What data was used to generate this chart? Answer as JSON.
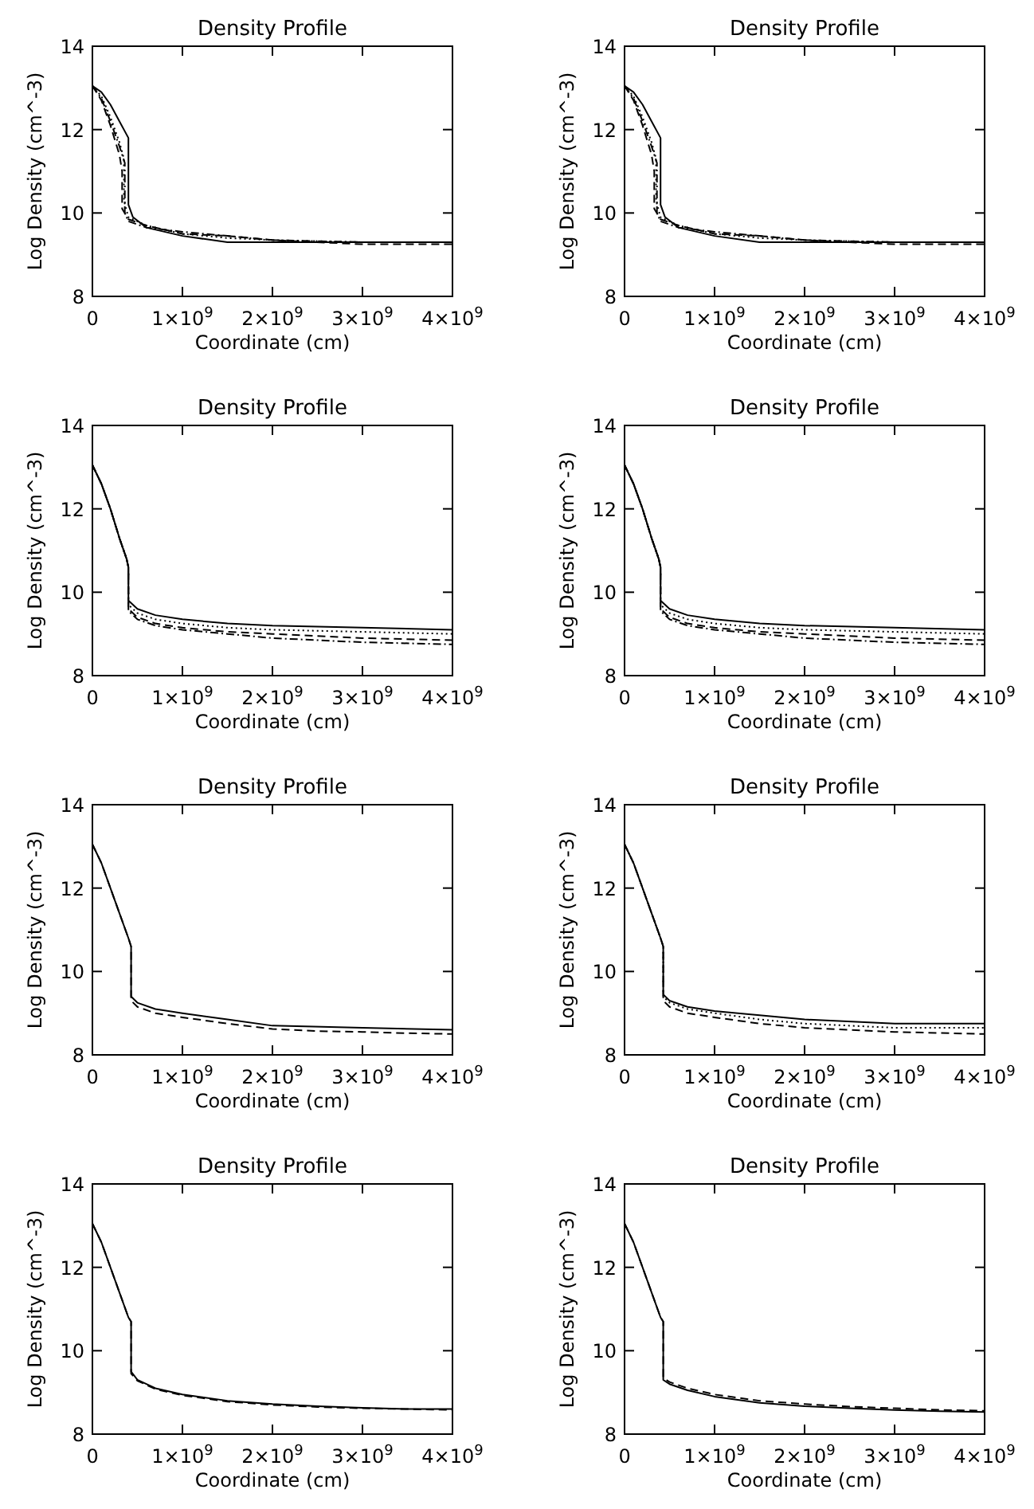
{
  "chart_data": [
    {
      "type": "line",
      "title": "Density Profile",
      "xlabel": "Coordinate (cm)",
      "ylabel": "Log Density (cm^-3)",
      "xlim": [
        0,
        4000000000.0
      ],
      "ylim": [
        8,
        14
      ],
      "xticks": [
        {
          "value": 0,
          "label": "0"
        },
        {
          "value": 1000000000.0,
          "label": "1×10$^{9}$"
        },
        {
          "value": 2000000000.0,
          "label": "2×10$^{9}$"
        },
        {
          "value": 3000000000.0,
          "label": "3×10$^{9}$"
        },
        {
          "value": 4000000000.0,
          "label": "4×10$^{9}$"
        }
      ],
      "yticks": [
        8,
        10,
        12,
        14
      ],
      "grid": false,
      "series": [
        {
          "color": "#000000",
          "line_style": "solid",
          "x": [
            0,
            100000000.0,
            200000000.0,
            300000000.0,
            400000000.0,
            400000000.0,
            450000000.0,
            600000000.0,
            800000000.0,
            1000000000.0,
            1500000000.0,
            2000000000.0,
            3000000000.0,
            4000000000.0
          ],
          "values": [
            13.05,
            12.9,
            12.6,
            12.2,
            11.8,
            10.2,
            9.9,
            9.65,
            9.55,
            9.45,
            9.3,
            9.3,
            9.3,
            9.3
          ]
        },
        {
          "color": "#000000",
          "line_style": "dotted",
          "x": [
            0,
            100000000.0,
            200000000.0,
            300000000.0,
            350000000.0,
            350000000.0,
            400000000.0,
            600000000.0,
            800000000.0,
            1000000000.0,
            1500000000.0,
            2000000000.0,
            3000000000.0,
            4000000000.0
          ],
          "values": [
            13.05,
            12.8,
            12.3,
            11.7,
            11.3,
            10.3,
            9.9,
            9.7,
            9.6,
            9.5,
            9.4,
            9.35,
            9.3,
            9.3
          ]
        },
        {
          "color": "#000000",
          "line_style": "dashed",
          "x": [
            0,
            100000000.0,
            200000000.0,
            300000000.0,
            330000000.0,
            330000000.0,
            400000000.0,
            600000000.0,
            800000000.0,
            1000000000.0,
            1500000000.0,
            2000000000.0,
            3000000000.0,
            4000000000.0
          ],
          "values": [
            13.05,
            12.7,
            12.1,
            11.4,
            11.0,
            10.1,
            9.85,
            9.7,
            9.6,
            9.5,
            9.45,
            9.35,
            9.25,
            9.25
          ]
        },
        {
          "color": "#000000",
          "line_style": "dashdot",
          "x": [
            0,
            100000000.0,
            200000000.0,
            300000000.0,
            360000000.0,
            360000000.0,
            400000000.0,
            600000000.0,
            800000000.0,
            1000000000.0,
            1500000000.0,
            2000000000.0,
            3000000000.0,
            4000000000.0
          ],
          "values": [
            13.05,
            12.75,
            12.2,
            11.6,
            11.2,
            10.0,
            9.8,
            9.65,
            9.6,
            9.55,
            9.45,
            9.35,
            9.3,
            9.3
          ]
        }
      ]
    },
    {
      "type": "line",
      "title": "Density Profile",
      "xlabel": "Coordinate (cm)",
      "ylabel": "Log Density (cm^-3)",
      "xlim": [
        0,
        4000000000.0
      ],
      "ylim": [
        8,
        14
      ],
      "xticks": [
        {
          "value": 0,
          "label": "0"
        },
        {
          "value": 1000000000.0,
          "label": "1×10$^{9}$"
        },
        {
          "value": 2000000000.0,
          "label": "2×10$^{9}$"
        },
        {
          "value": 3000000000.0,
          "label": "3×10$^{9}$"
        },
        {
          "value": 4000000000.0,
          "label": "4×10$^{9}$"
        }
      ],
      "yticks": [
        8,
        10,
        12,
        14
      ],
      "grid": false,
      "series": [
        {
          "color": "#000000",
          "line_style": "solid",
          "x": [
            0,
            100000000.0,
            200000000.0,
            300000000.0,
            400000000.0,
            400000000.0,
            450000000.0,
            600000000.0,
            800000000.0,
            1000000000.0,
            1500000000.0,
            2000000000.0,
            3000000000.0,
            4000000000.0
          ],
          "values": [
            13.05,
            12.9,
            12.6,
            12.2,
            11.8,
            10.2,
            9.9,
            9.65,
            9.55,
            9.45,
            9.3,
            9.3,
            9.3,
            9.3
          ]
        },
        {
          "color": "#000000",
          "line_style": "dotted",
          "x": [
            0,
            100000000.0,
            200000000.0,
            300000000.0,
            350000000.0,
            350000000.0,
            400000000.0,
            600000000.0,
            800000000.0,
            1000000000.0,
            1500000000.0,
            2000000000.0,
            3000000000.0,
            4000000000.0
          ],
          "values": [
            13.05,
            12.8,
            12.3,
            11.7,
            11.3,
            10.3,
            9.9,
            9.7,
            9.6,
            9.5,
            9.4,
            9.35,
            9.3,
            9.3
          ]
        },
        {
          "color": "#000000",
          "line_style": "dashed",
          "x": [
            0,
            100000000.0,
            200000000.0,
            300000000.0,
            330000000.0,
            330000000.0,
            400000000.0,
            600000000.0,
            800000000.0,
            1000000000.0,
            1500000000.0,
            2000000000.0,
            3000000000.0,
            4000000000.0
          ],
          "values": [
            13.05,
            12.7,
            12.1,
            11.4,
            11.0,
            10.1,
            9.85,
            9.7,
            9.6,
            9.5,
            9.45,
            9.35,
            9.25,
            9.25
          ]
        },
        {
          "color": "#000000",
          "line_style": "dashdot",
          "x": [
            0,
            100000000.0,
            200000000.0,
            300000000.0,
            360000000.0,
            360000000.0,
            400000000.0,
            600000000.0,
            800000000.0,
            1000000000.0,
            1500000000.0,
            2000000000.0,
            3000000000.0,
            4000000000.0
          ],
          "values": [
            13.05,
            12.75,
            12.2,
            11.6,
            11.2,
            10.0,
            9.8,
            9.65,
            9.6,
            9.55,
            9.45,
            9.35,
            9.3,
            9.3
          ]
        }
      ]
    },
    {
      "type": "line",
      "title": "Density Profile",
      "xlabel": "Coordinate (cm)",
      "ylabel": "Log Density (cm^-3)",
      "xlim": [
        0,
        4000000000.0
      ],
      "ylim": [
        8,
        14
      ],
      "xticks": [
        {
          "value": 0,
          "label": "0"
        },
        {
          "value": 1000000000.0,
          "label": "1×10$^{9}$"
        },
        {
          "value": 2000000000.0,
          "label": "2×10$^{9}$"
        },
        {
          "value": 3000000000.0,
          "label": "3×10$^{9}$"
        },
        {
          "value": 4000000000.0,
          "label": "4×10$^{9}$"
        }
      ],
      "yticks": [
        8,
        10,
        12,
        14
      ],
      "grid": false,
      "series": [
        {
          "color": "#000000",
          "line_style": "solid",
          "x": [
            0,
            100000000.0,
            200000000.0,
            300000000.0,
            380000000.0,
            400000000.0,
            400000000.0,
            500000000.0,
            700000000.0,
            1000000000.0,
            1500000000.0,
            2000000000.0,
            3000000000.0,
            4000000000.0
          ],
          "values": [
            13.05,
            12.6,
            12.0,
            11.3,
            10.8,
            10.6,
            9.8,
            9.6,
            9.45,
            9.35,
            9.25,
            9.2,
            9.15,
            9.1
          ]
        },
        {
          "color": "#000000",
          "line_style": "dotted",
          "x": [
            0,
            100000000.0,
            200000000.0,
            300000000.0,
            380000000.0,
            400000000.0,
            400000000.0,
            500000000.0,
            700000000.0,
            1000000000.0,
            1500000000.0,
            2000000000.0,
            3000000000.0,
            4000000000.0
          ],
          "values": [
            13.05,
            12.6,
            12.0,
            11.3,
            10.8,
            10.6,
            9.7,
            9.5,
            9.35,
            9.25,
            9.15,
            9.1,
            9.05,
            9.0
          ]
        },
        {
          "color": "#000000",
          "line_style": "dashed",
          "x": [
            0,
            100000000.0,
            200000000.0,
            300000000.0,
            380000000.0,
            400000000.0,
            400000000.0,
            500000000.0,
            700000000.0,
            1000000000.0,
            1500000000.0,
            2000000000.0,
            3000000000.0,
            4000000000.0
          ],
          "values": [
            13.05,
            12.6,
            12.0,
            11.3,
            10.8,
            10.6,
            9.6,
            9.4,
            9.25,
            9.15,
            9.05,
            9.0,
            8.9,
            8.85
          ]
        },
        {
          "color": "#000000",
          "line_style": "dashdot",
          "x": [
            0,
            100000000.0,
            200000000.0,
            300000000.0,
            380000000.0,
            400000000.0,
            400000000.0,
            500000000.0,
            700000000.0,
            1000000000.0,
            1500000000.0,
            2000000000.0,
            3000000000.0,
            4000000000.0
          ],
          "values": [
            13.05,
            12.6,
            12.0,
            11.3,
            10.8,
            10.6,
            9.55,
            9.35,
            9.2,
            9.1,
            9.0,
            8.9,
            8.8,
            8.75
          ]
        }
      ]
    },
    {
      "type": "line",
      "title": "Density Profile",
      "xlabel": "Coordinate (cm)",
      "ylabel": "Log Density (cm^-3)",
      "xlim": [
        0,
        4000000000.0
      ],
      "ylim": [
        8,
        14
      ],
      "xticks": [
        {
          "value": 0,
          "label": "0"
        },
        {
          "value": 1000000000.0,
          "label": "1×10$^{9}$"
        },
        {
          "value": 2000000000.0,
          "label": "2×10$^{9}$"
        },
        {
          "value": 3000000000.0,
          "label": "3×10$^{9}$"
        },
        {
          "value": 4000000000.0,
          "label": "4×10$^{9}$"
        }
      ],
      "yticks": [
        8,
        10,
        12,
        14
      ],
      "grid": false,
      "series": [
        {
          "color": "#000000",
          "line_style": "solid",
          "x": [
            0,
            100000000.0,
            200000000.0,
            300000000.0,
            380000000.0,
            400000000.0,
            400000000.0,
            500000000.0,
            700000000.0,
            1000000000.0,
            1500000000.0,
            2000000000.0,
            3000000000.0,
            4000000000.0
          ],
          "values": [
            13.05,
            12.6,
            12.0,
            11.3,
            10.8,
            10.6,
            9.8,
            9.6,
            9.45,
            9.35,
            9.25,
            9.2,
            9.15,
            9.1
          ]
        },
        {
          "color": "#000000",
          "line_style": "dotted",
          "x": [
            0,
            100000000.0,
            200000000.0,
            300000000.0,
            380000000.0,
            400000000.0,
            400000000.0,
            500000000.0,
            700000000.0,
            1000000000.0,
            1500000000.0,
            2000000000.0,
            3000000000.0,
            4000000000.0
          ],
          "values": [
            13.05,
            12.6,
            12.0,
            11.3,
            10.8,
            10.6,
            9.7,
            9.5,
            9.35,
            9.25,
            9.15,
            9.1,
            9.05,
            9.0
          ]
        },
        {
          "color": "#000000",
          "line_style": "dashed",
          "x": [
            0,
            100000000.0,
            200000000.0,
            300000000.0,
            380000000.0,
            400000000.0,
            400000000.0,
            500000000.0,
            700000000.0,
            1000000000.0,
            1500000000.0,
            2000000000.0,
            3000000000.0,
            4000000000.0
          ],
          "values": [
            13.05,
            12.6,
            12.0,
            11.3,
            10.8,
            10.6,
            9.6,
            9.4,
            9.25,
            9.15,
            9.05,
            9.0,
            8.9,
            8.85
          ]
        },
        {
          "color": "#000000",
          "line_style": "dashdot",
          "x": [
            0,
            100000000.0,
            200000000.0,
            300000000.0,
            380000000.0,
            400000000.0,
            400000000.0,
            500000000.0,
            700000000.0,
            1000000000.0,
            1500000000.0,
            2000000000.0,
            3000000000.0,
            4000000000.0
          ],
          "values": [
            13.05,
            12.6,
            12.0,
            11.3,
            10.8,
            10.6,
            9.55,
            9.35,
            9.2,
            9.1,
            9.0,
            8.9,
            8.8,
            8.75
          ]
        }
      ]
    },
    {
      "type": "line",
      "title": "Density Profile",
      "xlabel": "Coordinate (cm)",
      "ylabel": "Log Density (cm^-3)",
      "xlim": [
        0,
        4000000000.0
      ],
      "ylim": [
        8,
        14
      ],
      "xticks": [
        {
          "value": 0,
          "label": "0"
        },
        {
          "value": 1000000000.0,
          "label": "1×10$^{9}$"
        },
        {
          "value": 2000000000.0,
          "label": "2×10$^{9}$"
        },
        {
          "value": 3000000000.0,
          "label": "3×10$^{9}$"
        },
        {
          "value": 4000000000.0,
          "label": "4×10$^{9}$"
        }
      ],
      "yticks": [
        8,
        10,
        12,
        14
      ],
      "grid": false,
      "series": [
        {
          "color": "#000000",
          "line_style": "solid",
          "x": [
            0,
            100000000.0,
            200000000.0,
            300000000.0,
            400000000.0,
            430000000.0,
            430000000.0,
            500000000.0,
            700000000.0,
            1000000000.0,
            1500000000.0,
            2000000000.0,
            3000000000.0,
            4000000000.0
          ],
          "values": [
            13.05,
            12.6,
            12.0,
            11.4,
            10.8,
            10.6,
            9.4,
            9.25,
            9.1,
            9.0,
            8.85,
            8.7,
            8.65,
            8.6
          ]
        },
        {
          "color": "#000000",
          "line_style": "dashed",
          "x": [
            0,
            100000000.0,
            200000000.0,
            300000000.0,
            400000000.0,
            430000000.0,
            430000000.0,
            500000000.0,
            700000000.0,
            1000000000.0,
            1500000000.0,
            2000000000.0,
            2500000000.0,
            3000000000.0,
            3500000000.0,
            4000000000.0
          ],
          "values": [
            13.05,
            12.6,
            12.0,
            11.4,
            10.8,
            10.6,
            9.3,
            9.15,
            9.0,
            8.9,
            8.75,
            8.62,
            8.57,
            8.55,
            8.52,
            8.5
          ]
        }
      ]
    },
    {
      "type": "line",
      "title": "Density Profile",
      "xlabel": "Coordinate (cm)",
      "ylabel": "Log Density (cm^-3)",
      "xlim": [
        0,
        4000000000.0
      ],
      "ylim": [
        8,
        14
      ],
      "xticks": [
        {
          "value": 0,
          "label": "0"
        },
        {
          "value": 1000000000.0,
          "label": "1×10$^{9}$"
        },
        {
          "value": 2000000000.0,
          "label": "2×10$^{9}$"
        },
        {
          "value": 3000000000.0,
          "label": "3×10$^{9}$"
        },
        {
          "value": 4000000000.0,
          "label": "4×10$^{9}$"
        }
      ],
      "yticks": [
        8,
        10,
        12,
        14
      ],
      "grid": false,
      "series": [
        {
          "color": "#000000",
          "line_style": "solid",
          "x": [
            0,
            100000000.0,
            200000000.0,
            300000000.0,
            400000000.0,
            430000000.0,
            430000000.0,
            500000000.0,
            700000000.0,
            1000000000.0,
            1500000000.0,
            2000000000.0,
            3000000000.0,
            4000000000.0
          ],
          "values": [
            13.05,
            12.6,
            12.0,
            11.4,
            10.8,
            10.6,
            9.45,
            9.3,
            9.15,
            9.05,
            8.95,
            8.85,
            8.75,
            8.75
          ]
        },
        {
          "color": "#000000",
          "line_style": "dotted",
          "x": [
            0,
            100000000.0,
            200000000.0,
            300000000.0,
            400000000.0,
            430000000.0,
            430000000.0,
            500000000.0,
            700000000.0,
            1000000000.0,
            1500000000.0,
            2000000000.0,
            3000000000.0,
            4000000000.0
          ],
          "values": [
            13.05,
            12.6,
            12.0,
            11.4,
            10.8,
            10.6,
            9.4,
            9.25,
            9.1,
            9.0,
            8.85,
            8.75,
            8.65,
            8.65
          ]
        },
        {
          "color": "#000000",
          "line_style": "dashed",
          "x": [
            0,
            100000000.0,
            200000000.0,
            300000000.0,
            400000000.0,
            430000000.0,
            430000000.0,
            500000000.0,
            700000000.0,
            1000000000.0,
            1500000000.0,
            2000000000.0,
            3000000000.0,
            4000000000.0
          ],
          "values": [
            13.05,
            12.6,
            12.0,
            11.4,
            10.8,
            10.6,
            9.3,
            9.15,
            9.0,
            8.9,
            8.75,
            8.65,
            8.55,
            8.5
          ]
        }
      ]
    },
    {
      "type": "line",
      "title": "Density Profile",
      "xlabel": "Coordinate (cm)",
      "ylabel": "Log Density (cm^-3)",
      "xlim": [
        0,
        4000000000.0
      ],
      "ylim": [
        8,
        14
      ],
      "xticks": [
        {
          "value": 0,
          "label": "0"
        },
        {
          "value": 1000000000.0,
          "label": "1×10$^{9}$"
        },
        {
          "value": 2000000000.0,
          "label": "2×10$^{9}$"
        },
        {
          "value": 3000000000.0,
          "label": "3×10$^{9}$"
        },
        {
          "value": 4000000000.0,
          "label": "4×10$^{9}$"
        }
      ],
      "yticks": [
        8,
        10,
        12,
        14
      ],
      "grid": false,
      "series": [
        {
          "color": "#000000",
          "line_style": "solid",
          "x": [
            0,
            100000000.0,
            200000000.0,
            300000000.0,
            400000000.0,
            430000000.0,
            430000000.0,
            500000000.0,
            700000000.0,
            1000000000.0,
            1500000000.0,
            2000000000.0,
            2500000000.0,
            3000000000.0,
            3500000000.0,
            4000000000.0
          ],
          "values": [
            13.05,
            12.6,
            12.0,
            11.4,
            10.8,
            10.7,
            9.5,
            9.3,
            9.1,
            8.95,
            8.8,
            8.72,
            8.67,
            8.63,
            8.6,
            8.6
          ]
        },
        {
          "color": "#000000",
          "line_style": "dashed",
          "x": [
            0,
            100000000.0,
            200000000.0,
            300000000.0,
            400000000.0,
            430000000.0,
            430000000.0,
            500000000.0,
            700000000.0,
            1000000000.0,
            1500000000.0,
            2000000000.0,
            2500000000.0,
            3000000000.0,
            3500000000.0,
            4000000000.0
          ],
          "values": [
            13.05,
            12.6,
            12.0,
            11.4,
            10.8,
            10.7,
            9.45,
            9.28,
            9.08,
            8.93,
            8.78,
            8.7,
            8.65,
            8.62,
            8.6,
            8.58
          ]
        }
      ]
    },
    {
      "type": "line",
      "title": "Density Profile",
      "xlabel": "Coordinate (cm)",
      "ylabel": "Log Density (cm^-3)",
      "xlim": [
        0,
        4000000000.0
      ],
      "ylim": [
        8,
        14
      ],
      "xticks": [
        {
          "value": 0,
          "label": "0"
        },
        {
          "value": 1000000000.0,
          "label": "1×10$^{9}$"
        },
        {
          "value": 2000000000.0,
          "label": "2×10$^{9}$"
        },
        {
          "value": 3000000000.0,
          "label": "3×10$^{9}$"
        },
        {
          "value": 4000000000.0,
          "label": "4×10$^{9}$"
        }
      ],
      "yticks": [
        8,
        10,
        12,
        14
      ],
      "grid": false,
      "series": [
        {
          "color": "#000000",
          "line_style": "solid",
          "x": [
            0,
            100000000.0,
            200000000.0,
            300000000.0,
            400000000.0,
            430000000.0,
            430000000.0,
            500000000.0,
            700000000.0,
            1000000000.0,
            1500000000.0,
            2000000000.0,
            2500000000.0,
            3000000000.0,
            3500000000.0,
            4000000000.0
          ],
          "values": [
            13.05,
            12.6,
            12.0,
            11.4,
            10.8,
            10.7,
            9.3,
            9.2,
            9.05,
            8.9,
            8.75,
            8.67,
            8.62,
            8.58,
            8.55,
            8.53
          ]
        },
        {
          "color": "#000000",
          "line_style": "dashed",
          "x": [
            0,
            100000000.0,
            200000000.0,
            300000000.0,
            400000000.0,
            430000000.0,
            430000000.0,
            500000000.0,
            700000000.0,
            1000000000.0,
            1500000000.0,
            2000000000.0,
            2500000000.0,
            3000000000.0,
            3500000000.0,
            4000000000.0
          ],
          "values": [
            13.05,
            12.6,
            12.0,
            11.4,
            10.8,
            10.7,
            9.35,
            9.25,
            9.1,
            8.95,
            8.8,
            8.72,
            8.66,
            8.62,
            8.58,
            8.56
          ]
        }
      ]
    }
  ]
}
